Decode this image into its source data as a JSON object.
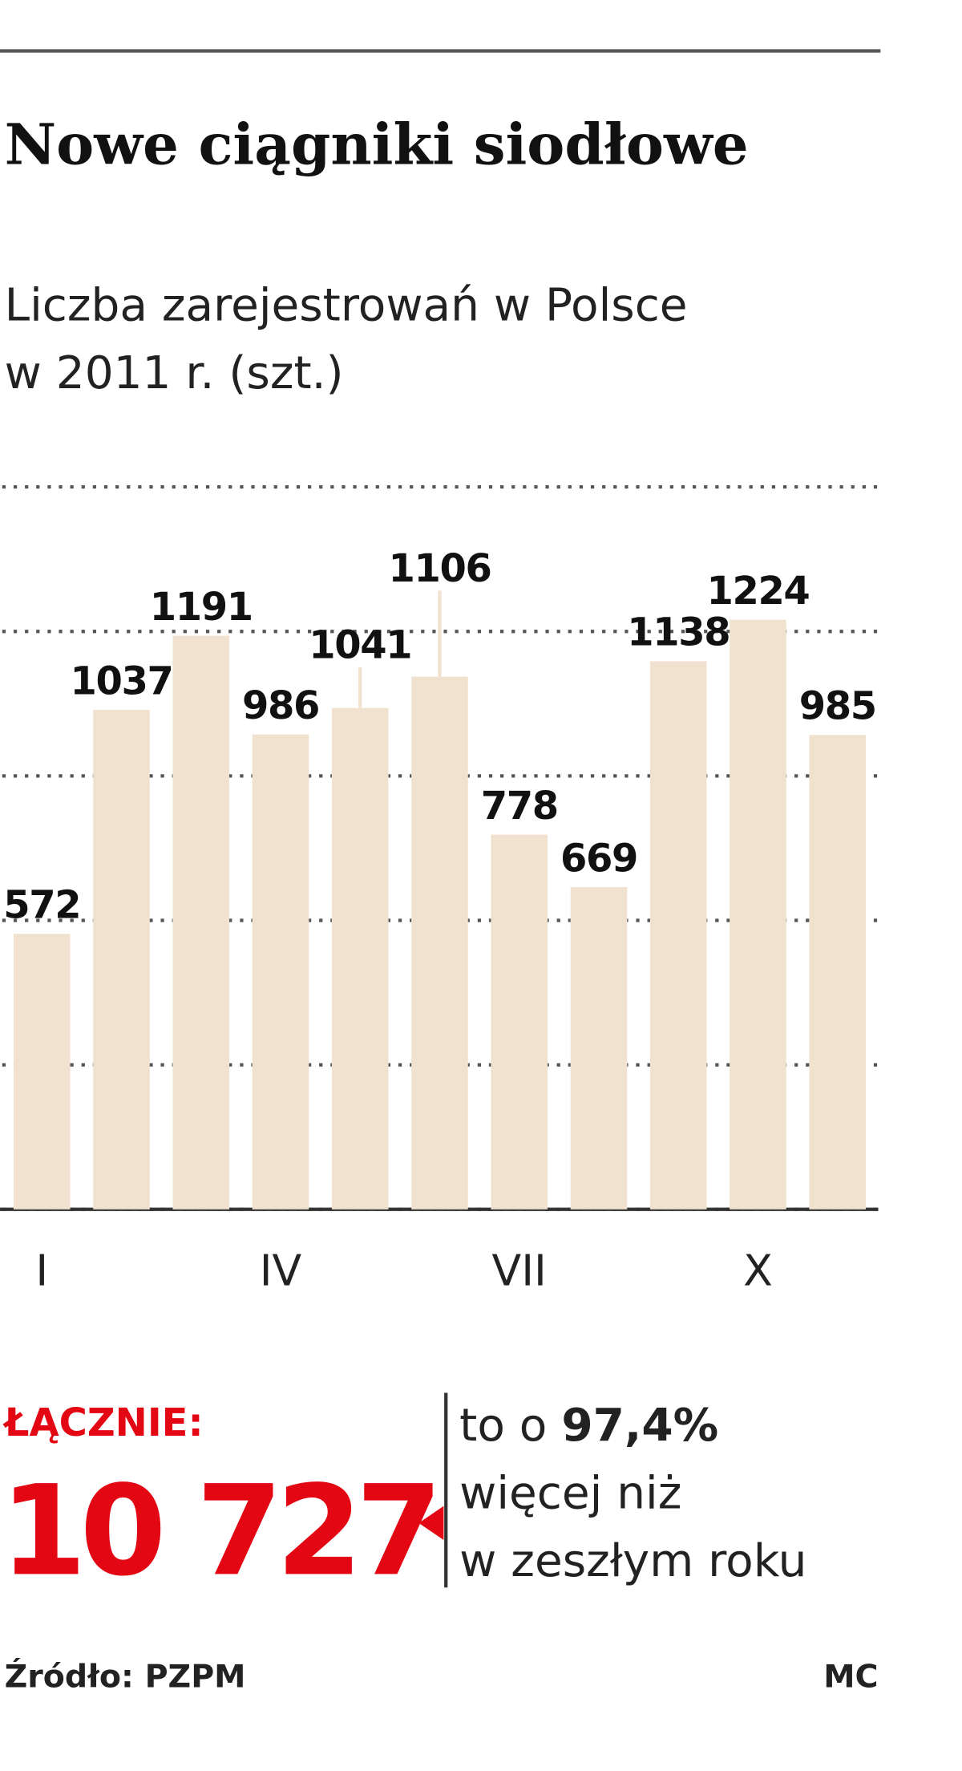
{
  "chart_data": {
    "type": "bar",
    "title": "Nowe ciągniki siodłowe",
    "subtitle": [
      "Liczba zarejestrowań w Polsce",
      "w 2011 r. (szt.)"
    ],
    "categories": [
      "I",
      null,
      null,
      "IV",
      null,
      null,
      "VII",
      null,
      null,
      "X",
      null
    ],
    "values": [
      572,
      1037,
      1191,
      986,
      1041,
      1106,
      778,
      669,
      1138,
      1224,
      985
    ],
    "color": "#f0e2cf",
    "ylim": [
      0,
      1500
    ],
    "yticks": [
      0,
      300,
      600,
      900,
      1200,
      1500
    ],
    "grid": true
  },
  "summary": {
    "label": "ŁĄCZNIE:",
    "total": "10 727",
    "note_start": "to o ",
    "change": "97,4%",
    "note_lines": [
      "więcej niż",
      "w zeszłym roku"
    ]
  },
  "source": "Źródło: PZPM",
  "credit": "MC"
}
